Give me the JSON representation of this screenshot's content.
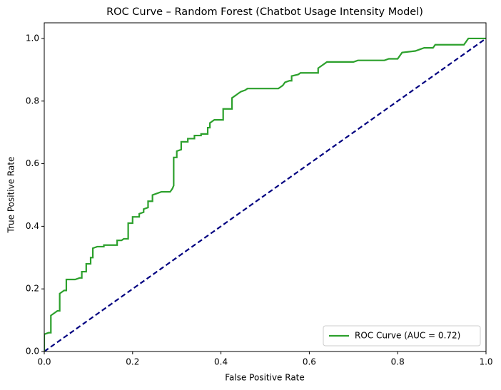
{
  "chart_data": {
    "type": "line",
    "title": "ROC Curve – Random Forest (Chatbot Usage Intensity Model)",
    "x_label": "False Positive Rate",
    "y_label": "True Positive Rate",
    "xlim": [
      0,
      1
    ],
    "ylim": [
      0,
      1.05
    ],
    "xticks": [
      {
        "value": 0,
        "label": "0.0"
      },
      0.2,
      0.4,
      0.6,
      0.8,
      {
        "value": 1,
        "label": "1.0"
      }
    ],
    "yticks": [
      {
        "value": 0,
        "label": "0.0"
      },
      0.2,
      0.4,
      0.6,
      0.8,
      {
        "value": 1,
        "label": "1.0"
      }
    ],
    "legend": "lower right",
    "series": [
      {
        "name": "ROC Curve (AUC = 0.72)",
        "color": "#2ca02c",
        "dashed": false,
        "x": [
          0,
          0,
          0.01,
          0.015,
          0.015,
          0.025,
          0.03,
          0.035,
          0.035,
          0.045,
          0.05,
          0.05,
          0.07,
          0.08,
          0.085,
          0.085,
          0.095,
          0.095,
          0.105,
          0.105,
          0.11,
          0.11,
          0.12,
          0.135,
          0.135,
          0.165,
          0.165,
          0.175,
          0.18,
          0.19,
          0.19,
          0.2,
          0.2,
          0.215,
          0.215,
          0.225,
          0.225,
          0.235,
          0.235,
          0.245,
          0.245,
          0.255,
          0.265,
          0.285,
          0.29,
          0.293,
          0.293,
          0.3,
          0.3,
          0.31,
          0.31,
          0.325,
          0.325,
          0.34,
          0.34,
          0.355,
          0.355,
          0.37,
          0.37,
          0.375,
          0.375,
          0.385,
          0.405,
          0.405,
          0.425,
          0.425,
          0.43,
          0.435,
          0.44,
          0.445,
          0.455,
          0.46,
          0.53,
          0.535,
          0.54,
          0.545,
          0.555,
          0.56,
          0.56,
          0.575,
          0.58,
          0.62,
          0.62,
          0.63,
          0.635,
          0.64,
          0.7,
          0.71,
          0.77,
          0.78,
          0.8,
          0.81,
          0.84,
          0.85,
          0.86,
          0.88,
          0.885,
          0.95,
          0.96,
          1
        ],
        "values": [
          0,
          0.055,
          0.06,
          0.06,
          0.115,
          0.125,
          0.13,
          0.13,
          0.185,
          0.195,
          0.195,
          0.23,
          0.23,
          0.235,
          0.235,
          0.255,
          0.255,
          0.28,
          0.28,
          0.3,
          0.3,
          0.33,
          0.335,
          0.335,
          0.34,
          0.34,
          0.355,
          0.355,
          0.36,
          0.36,
          0.41,
          0.41,
          0.43,
          0.43,
          0.44,
          0.445,
          0.455,
          0.46,
          0.48,
          0.48,
          0.5,
          0.505,
          0.51,
          0.51,
          0.52,
          0.53,
          0.62,
          0.62,
          0.64,
          0.645,
          0.67,
          0.67,
          0.68,
          0.68,
          0.69,
          0.69,
          0.695,
          0.695,
          0.715,
          0.715,
          0.73,
          0.74,
          0.74,
          0.775,
          0.775,
          0.81,
          0.815,
          0.82,
          0.825,
          0.83,
          0.835,
          0.84,
          0.84,
          0.845,
          0.85,
          0.86,
          0.865,
          0.865,
          0.88,
          0.885,
          0.89,
          0.89,
          0.905,
          0.915,
          0.92,
          0.925,
          0.925,
          0.93,
          0.93,
          0.935,
          0.935,
          0.955,
          0.96,
          0.965,
          0.97,
          0.97,
          0.98,
          0.98,
          1,
          1
        ]
      },
      {
        "color": "#000080",
        "dashed": true,
        "x": [
          0,
          1
        ],
        "values": [
          0,
          1
        ]
      }
    ]
  }
}
